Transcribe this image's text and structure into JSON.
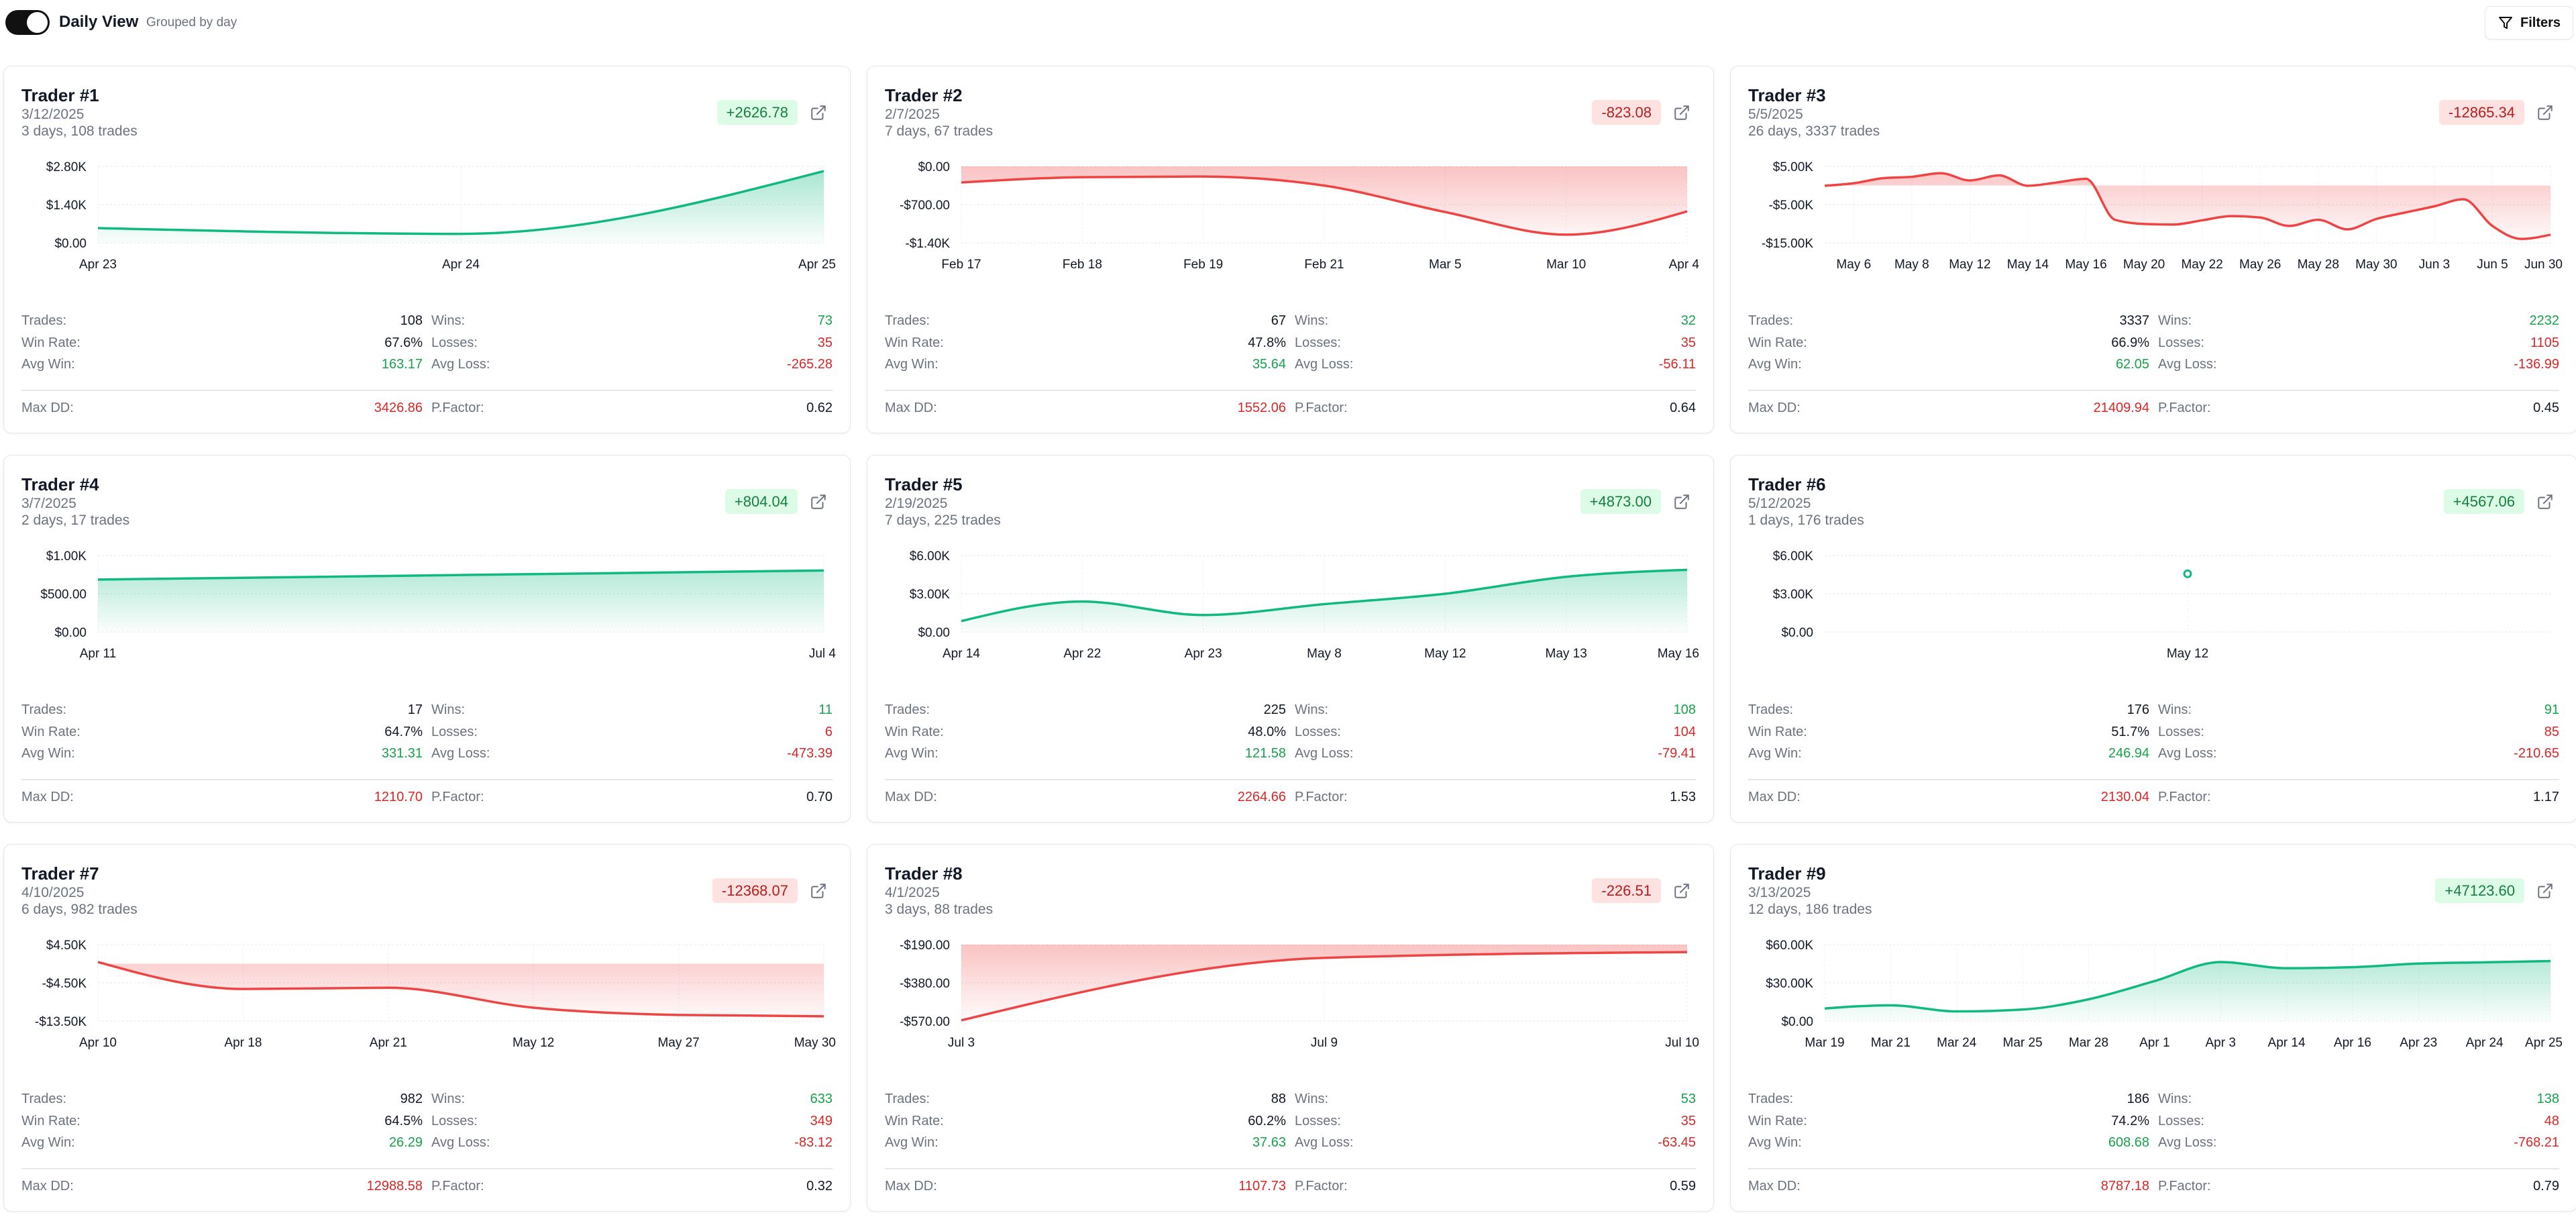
{
  "header": {
    "view_title": "Daily View",
    "view_subtitle": "Grouped by day",
    "toggle_on": true,
    "filters_label": "Filters"
  },
  "labels": {
    "trades": "Trades:",
    "wins": "Wins:",
    "win_rate": "Win Rate:",
    "losses": "Losses:",
    "avg_win": "Avg Win:",
    "avg_loss": "Avg Loss:",
    "max_dd": "Max DD:",
    "p_factor": "P.Factor:"
  },
  "colors": {
    "positive": "#10b981",
    "negative": "#ef4444",
    "positive_text": "#16a34a",
    "negative_text": "#dc2626"
  },
  "traders": [
    {
      "name": "Trader #1",
      "date": "3/12/2025",
      "summary": "3 days, 108 trades",
      "pnl": "+2626.78",
      "positive": true,
      "stats": {
        "trades": "108",
        "wins": "73",
        "win_rate": "67.6%",
        "losses": "35",
        "avg_win": "163.17",
        "avg_loss": "-265.28",
        "max_dd": "3426.86",
        "p_factor": "0.62"
      },
      "chart_data": {
        "type": "area",
        "x": [
          "Apr 23",
          "Apr 24",
          "Apr 25"
        ],
        "y": [
          540,
          330,
          2627
        ],
        "yticks": [
          0,
          1400,
          2800
        ],
        "ytick_labels": [
          "$0.00",
          "$1.40K",
          "$2.80K"
        ],
        "grid": true
      }
    },
    {
      "name": "Trader #2",
      "date": "2/7/2025",
      "summary": "7 days, 67 trades",
      "pnl": "-823.08",
      "positive": false,
      "stats": {
        "trades": "67",
        "wins": "32",
        "win_rate": "47.8%",
        "losses": "35",
        "avg_win": "35.64",
        "avg_loss": "-56.11",
        "max_dd": "1552.06",
        "p_factor": "0.64"
      },
      "chart_data": {
        "type": "area",
        "x": [
          "Feb 17",
          "Feb 18",
          "Feb 19",
          "Feb 21",
          "Mar 5",
          "Mar 10",
          "Apr 4"
        ],
        "y": [
          -295,
          -198,
          -185,
          -352,
          -836,
          -1250,
          -823
        ],
        "yticks": [
          -1400,
          -700,
          0
        ],
        "ytick_labels": [
          "-$1.40K",
          "-$700.00",
          "$0.00"
        ],
        "grid": true
      }
    },
    {
      "name": "Trader #3",
      "date": "5/5/2025",
      "summary": "26 days, 3337 trades",
      "pnl": "-12865.34",
      "positive": false,
      "stats": {
        "trades": "3337",
        "wins": "2232",
        "win_rate": "66.9%",
        "losses": "1105",
        "avg_win": "62.05",
        "avg_loss": "-136.99",
        "max_dd": "21409.94",
        "p_factor": "0.45"
      },
      "chart_data": {
        "type": "area",
        "x": [
          "",
          "May 6",
          "",
          "May 8",
          "",
          "May 12",
          "",
          "May 14",
          "",
          "May 16",
          "",
          "May 20",
          "",
          "May 22",
          "",
          "May 26",
          "",
          "May 28",
          "",
          "May 30",
          "",
          "Jun 3",
          "",
          "Jun 5",
          "",
          "Jun 30"
        ],
        "y": [
          -70,
          590,
          1900,
          2270,
          3230,
          1320,
          2650,
          -70,
          800,
          1760,
          -8970,
          -10070,
          -10220,
          -9110,
          -8010,
          -8380,
          -10580,
          -8970,
          -11470,
          -8750,
          -7060,
          -5440,
          -3600,
          -10580,
          -13970,
          -12865
        ],
        "yticks": [
          -15000,
          -5000,
          5000
        ],
        "ytick_labels": [
          "-$15.00K",
          "-$5.00K",
          "$5.00K"
        ],
        "grid": true
      }
    },
    {
      "name": "Trader #4",
      "date": "3/7/2025",
      "summary": "2 days, 17 trades",
      "pnl": "+804.04",
      "positive": true,
      "stats": {
        "trades": "17",
        "wins": "11",
        "win_rate": "64.7%",
        "losses": "6",
        "avg_win": "331.31",
        "avg_loss": "-473.39",
        "max_dd": "1210.70",
        "p_factor": "0.70"
      },
      "chart_data": {
        "type": "area",
        "x": [
          "Apr 11",
          "Jul 4"
        ],
        "y": [
          685,
          804
        ],
        "yticks": [
          0,
          500,
          1000
        ],
        "ytick_labels": [
          "$0.00",
          "$500.00",
          "$1.00K"
        ],
        "grid": true
      }
    },
    {
      "name": "Trader #5",
      "date": "2/19/2025",
      "summary": "7 days, 225 trades",
      "pnl": "+4873.00",
      "positive": true,
      "stats": {
        "trades": "225",
        "wins": "108",
        "win_rate": "48.0%",
        "losses": "104",
        "avg_win": "121.58",
        "avg_loss": "-79.41",
        "max_dd": "2264.66",
        "p_factor": "1.53"
      },
      "chart_data": {
        "type": "area",
        "x": [
          "Apr 14",
          "Apr 22",
          "Apr 23",
          "May 8",
          "May 12",
          "May 13",
          "May 16"
        ],
        "y": [
          855,
          2390,
          1330,
          2185,
          3000,
          4330,
          4873
        ],
        "yticks": [
          0,
          3000,
          6000
        ],
        "ytick_labels": [
          "$0.00",
          "$3.00K",
          "$6.00K"
        ],
        "grid": true
      }
    },
    {
      "name": "Trader #6",
      "date": "5/12/2025",
      "summary": "1 days, 176 trades",
      "pnl": "+4567.06",
      "positive": true,
      "stats": {
        "trades": "176",
        "wins": "91",
        "win_rate": "51.7%",
        "losses": "85",
        "avg_win": "246.94",
        "avg_loss": "-210.65",
        "max_dd": "2130.04",
        "p_factor": "1.17"
      },
      "chart_data": {
        "type": "area",
        "x": [
          "May 12"
        ],
        "y": [
          4567
        ],
        "yticks": [
          0,
          3000,
          6000
        ],
        "ytick_labels": [
          "$0.00",
          "$3.00K",
          "$6.00K"
        ],
        "grid": true
      }
    },
    {
      "name": "Trader #7",
      "date": "4/10/2025",
      "summary": "6 days, 982 trades",
      "pnl": "-12368.07",
      "positive": false,
      "stats": {
        "trades": "982",
        "wins": "633",
        "win_rate": "64.5%",
        "losses": "349",
        "avg_win": "26.29",
        "avg_loss": "-83.12",
        "max_dd": "12988.58",
        "p_factor": "0.32"
      },
      "chart_data": {
        "type": "area",
        "x": [
          "Apr 10",
          "Apr 18",
          "Apr 21",
          "May 12",
          "May 27",
          "May 30"
        ],
        "y": [
          400,
          -5940,
          -5650,
          -10340,
          -12050,
          -12368
        ],
        "yticks": [
          -13500,
          -4500,
          4500
        ],
        "ytick_labels": [
          "-$13.50K",
          "-$4.50K",
          "$4.50K"
        ],
        "grid": true
      }
    },
    {
      "name": "Trader #8",
      "date": "4/1/2025",
      "summary": "3 days, 88 trades",
      "pnl": "-226.51",
      "positive": false,
      "stats": {
        "trades": "88",
        "wins": "53",
        "win_rate": "60.2%",
        "losses": "35",
        "avg_win": "37.63",
        "avg_loss": "-63.45",
        "max_dd": "1107.73",
        "p_factor": "0.59"
      },
      "chart_data": {
        "type": "area",
        "x": [
          "Jul 3",
          "Jul 9",
          "Jul 10"
        ],
        "y": [
          -566,
          -256,
          -227
        ],
        "yticks": [
          -570,
          -380,
          -190
        ],
        "ytick_labels": [
          "-$570.00",
          "-$380.00",
          "-$190.00"
        ],
        "grid": true
      }
    },
    {
      "name": "Trader #9",
      "date": "3/13/2025",
      "summary": "12 days, 186 trades",
      "pnl": "+47123.60",
      "positive": true,
      "stats": {
        "trades": "186",
        "wins": "138",
        "win_rate": "74.2%",
        "losses": "48",
        "avg_win": "608.68",
        "avg_loss": "-768.21",
        "max_dd": "8787.18",
        "p_factor": "0.79"
      },
      "chart_data": {
        "type": "area",
        "x": [
          "Mar 19",
          "Mar 21",
          "Mar 24",
          "Mar 25",
          "Mar 28",
          "Apr 1",
          "Apr 3",
          "Apr 14",
          "Apr 16",
          "Apr 23",
          "Apr 24",
          "Apr 25"
        ],
        "y": [
          9900,
          12400,
          7600,
          9100,
          17100,
          31400,
          46300,
          41500,
          42300,
          45100,
          46100,
          47124
        ],
        "yticks": [
          0,
          30000,
          60000
        ],
        "ytick_labels": [
          "$0.00",
          "$30.00K",
          "$60.00K"
        ],
        "grid": true
      }
    }
  ]
}
